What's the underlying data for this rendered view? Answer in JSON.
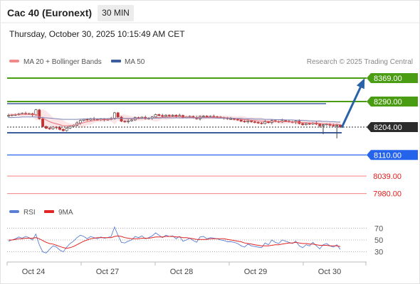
{
  "header": {
    "title": "Cac 40 (Euronext)",
    "timeframe": "30 MIN",
    "datetime": "Thursday, October 30, 2025 10:15:49 AM CET"
  },
  "legend": {
    "items": [
      {
        "label": "MA 20 + Bollinger Bands",
        "color": "#f08a8a"
      },
      {
        "label": "MA 50",
        "color": "#3d5e9c"
      }
    ],
    "credit": "Research © 2025 Trading Central"
  },
  "rsi_legend": {
    "items": [
      {
        "label": "RSI",
        "color": "#5b7fd6"
      },
      {
        "label": "9MA",
        "color": "#e02424"
      }
    ]
  },
  "chart_data": {
    "type": "candlestick",
    "x_tick_labels": [
      "Oct 24",
      "Oct 27",
      "Oct 28",
      "Oct 29",
      "Oct 30"
    ],
    "price_range": [
      7960,
      8400
    ],
    "levels": [
      {
        "value": "8369.00",
        "color": "#4a9c13",
        "kind": "target"
      },
      {
        "value": "8290.00",
        "color": "#4a9c13",
        "kind": "resistance"
      },
      {
        "value": "8204.00",
        "color": "#2b2b2b",
        "kind": "current"
      },
      {
        "value": "8110.00",
        "color": "#2563eb",
        "kind": "pivot"
      },
      {
        "value": "8039.00",
        "color": "#e41b1b",
        "kind": "support"
      },
      {
        "value": "7980.00",
        "color": "#e41b1b",
        "kind": "support"
      }
    ],
    "close": [
      8243,
      8245,
      8246,
      8248,
      8250,
      8248,
      8249,
      8245,
      8262,
      8232,
      8206,
      8200,
      8198,
      8204,
      8202,
      8196,
      8192,
      8200,
      8206,
      8210,
      8218,
      8226,
      8230,
      8228,
      8232,
      8230,
      8228,
      8231,
      8229,
      8230,
      8232,
      8252,
      8238,
      8224,
      8222,
      8225,
      8228,
      8236,
      8234,
      8237,
      8232,
      8234,
      8238,
      8246,
      8243,
      8240,
      8244,
      8242,
      8244,
      8240,
      8243,
      8236,
      8238,
      8240,
      8236,
      8232,
      8240,
      8241,
      8238,
      8240,
      8239,
      8238,
      8236,
      8235,
      8232,
      8232,
      8230,
      8228,
      8224,
      8222,
      8225,
      8222,
      8220,
      8218,
      8216,
      8222,
      8219,
      8226,
      8223,
      8221,
      8226,
      8224,
      8222,
      8220,
      8224,
      8216,
      8212,
      8216,
      8214,
      8218,
      8214,
      8208,
      8212,
      8214,
      8210,
      8208,
      8211,
      8204
    ],
    "ma20": [
      8244,
      8245,
      8246,
      8246,
      8247,
      8247,
      8247,
      8246,
      8246,
      8240,
      8234,
      8228,
      8222,
      8218,
      8215,
      8212,
      8208,
      8208,
      8209,
      8210,
      8213,
      8216,
      8219,
      8222,
      8224,
      8226,
      8227,
      8228,
      8228,
      8229,
      8230,
      8234,
      8234,
      8233,
      8232,
      8232,
      8232,
      8232,
      8232,
      8233,
      8233,
      8233,
      8234,
      8236,
      8236,
      8237,
      8238,
      8238,
      8239,
      8239,
      8239,
      8238,
      8238,
      8238,
      8237,
      8236,
      8237,
      8237,
      8237,
      8237,
      8237,
      8237,
      8237,
      8236,
      8235,
      8234,
      8233,
      8232,
      8230,
      8229,
      8228,
      8227,
      8226,
      8225,
      8224,
      8224,
      8223,
      8223,
      8223,
      8222,
      8222,
      8222,
      8222,
      8221,
      8221,
      8220,
      8219,
      8219,
      8218,
      8218,
      8217,
      8216,
      8215,
      8215,
      8214,
      8213,
      8213,
      8212
    ],
    "ma50": [
      8236,
      8236,
      8237,
      8237,
      8238,
      8238,
      8238,
      8238,
      8238,
      8237,
      8236,
      8235,
      8234,
      8233,
      8232,
      8231,
      8230,
      8230,
      8230,
      8230,
      8230,
      8231,
      8231,
      8232,
      8232,
      8232,
      8232,
      8232,
      8232,
      8232,
      8233,
      8233,
      8233,
      8233,
      8233,
      8233,
      8233,
      8233,
      8233,
      8234,
      8234,
      8234,
      8234,
      8234,
      8234,
      8235,
      8235,
      8235,
      8235,
      8235,
      8235,
      8235,
      8235,
      8235,
      8235,
      8235,
      8235,
      8235,
      8235,
      8235,
      8235,
      8234,
      8234,
      8234,
      8234,
      8234,
      8233,
      8233,
      8233,
      8232,
      8232,
      8232,
      8231,
      8231,
      8231,
      8230,
      8230,
      8230,
      8229,
      8229,
      8229,
      8228,
      8228,
      8228,
      8227,
      8227,
      8226,
      8226,
      8225,
      8225,
      8224,
      8224,
      8223,
      8223,
      8222,
      8222,
      8221,
      8221
    ],
    "rsi_axis_labels": [
      "70",
      "50",
      "30"
    ],
    "rsi_range": [
      20,
      80
    ],
    "rsi": [
      48,
      50,
      52,
      55,
      53,
      56,
      54,
      50,
      60,
      42,
      30,
      28,
      34,
      40,
      38,
      33,
      30,
      38,
      44,
      48,
      54,
      58,
      56,
      52,
      56,
      54,
      52,
      55,
      53,
      54,
      56,
      72,
      58,
      46,
      45,
      48,
      50,
      56,
      54,
      57,
      52,
      54,
      57,
      62,
      58,
      54,
      58,
      56,
      57,
      52,
      56,
      48,
      50,
      53,
      49,
      46,
      55,
      56,
      52,
      54,
      53,
      52,
      50,
      49,
      47,
      47,
      46,
      44,
      40,
      38,
      43,
      40,
      39,
      38,
      37,
      45,
      42,
      50,
      46,
      44,
      50,
      48,
      46,
      44,
      48,
      40,
      37,
      42,
      40,
      46,
      40,
      35,
      42,
      44,
      40,
      38,
      42,
      34
    ],
    "rsi_ma": [
      50,
      50,
      51,
      52,
      52,
      53,
      53,
      53,
      54,
      52,
      49,
      46,
      44,
      43,
      41,
      39,
      37,
      36,
      37,
      39,
      42,
      45,
      48,
      50,
      52,
      53,
      54,
      54,
      54,
      54,
      54,
      56,
      57,
      56,
      54,
      53,
      52,
      52,
      52,
      53,
      53,
      53,
      54,
      55,
      55,
      55,
      56,
      56,
      56,
      55,
      55,
      54,
      54,
      53,
      52,
      51,
      51,
      51,
      51,
      52,
      52,
      52,
      52,
      52,
      51,
      50,
      49,
      48,
      47,
      45,
      44,
      43,
      42,
      41,
      40,
      40,
      40,
      41,
      42,
      42,
      43,
      44,
      45,
      45,
      46,
      45,
      44,
      44,
      43,
      43,
      42,
      41,
      41,
      41,
      40,
      40,
      40,
      39
    ]
  }
}
